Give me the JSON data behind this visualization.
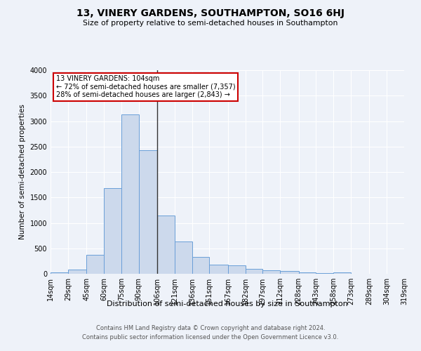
{
  "title": "13, VINERY GARDENS, SOUTHAMPTON, SO16 6HJ",
  "subtitle": "Size of property relative to semi-detached houses in Southampton",
  "xlabel": "Distribution of semi-detached houses by size in Southampton",
  "ylabel": "Number of semi-detached properties",
  "annotation_title": "13 VINERY GARDENS: 104sqm",
  "annotation_line1": "← 72% of semi-detached houses are smaller (7,357)",
  "annotation_line2": "28% of semi-detached houses are larger (2,843) →",
  "property_size": 104,
  "bin_edges": [
    14,
    29,
    45,
    60,
    75,
    90,
    106,
    121,
    136,
    151,
    167,
    182,
    197,
    212,
    228,
    243,
    258,
    273,
    289,
    304,
    319
  ],
  "bin_labels": [
    "14sqm",
    "29sqm",
    "45sqm",
    "60sqm",
    "75sqm",
    "90sqm",
    "106sqm",
    "121sqm",
    "136sqm",
    "151sqm",
    "167sqm",
    "182sqm",
    "197sqm",
    "212sqm",
    "228sqm",
    "243sqm",
    "258sqm",
    "273sqm",
    "289sqm",
    "304sqm",
    "319sqm"
  ],
  "counts": [
    30,
    80,
    370,
    1680,
    3130,
    2430,
    1145,
    630,
    335,
    175,
    160,
    100,
    65,
    50,
    30,
    15,
    30,
    0,
    0,
    0
  ],
  "bar_color": "#ccd9ec",
  "bar_edge_color": "#6a9fd8",
  "vline_color": "#333333",
  "annotation_box_color": "#ffffff",
  "annotation_box_edge": "#cc0000",
  "background_color": "#eef2f9",
  "grid_color": "#ffffff",
  "ylim": [
    0,
    4000
  ],
  "yticks": [
    0,
    500,
    1000,
    1500,
    2000,
    2500,
    3000,
    3500,
    4000
  ],
  "footer_line1": "Contains HM Land Registry data © Crown copyright and database right 2024.",
  "footer_line2": "Contains public sector information licensed under the Open Government Licence v3.0."
}
